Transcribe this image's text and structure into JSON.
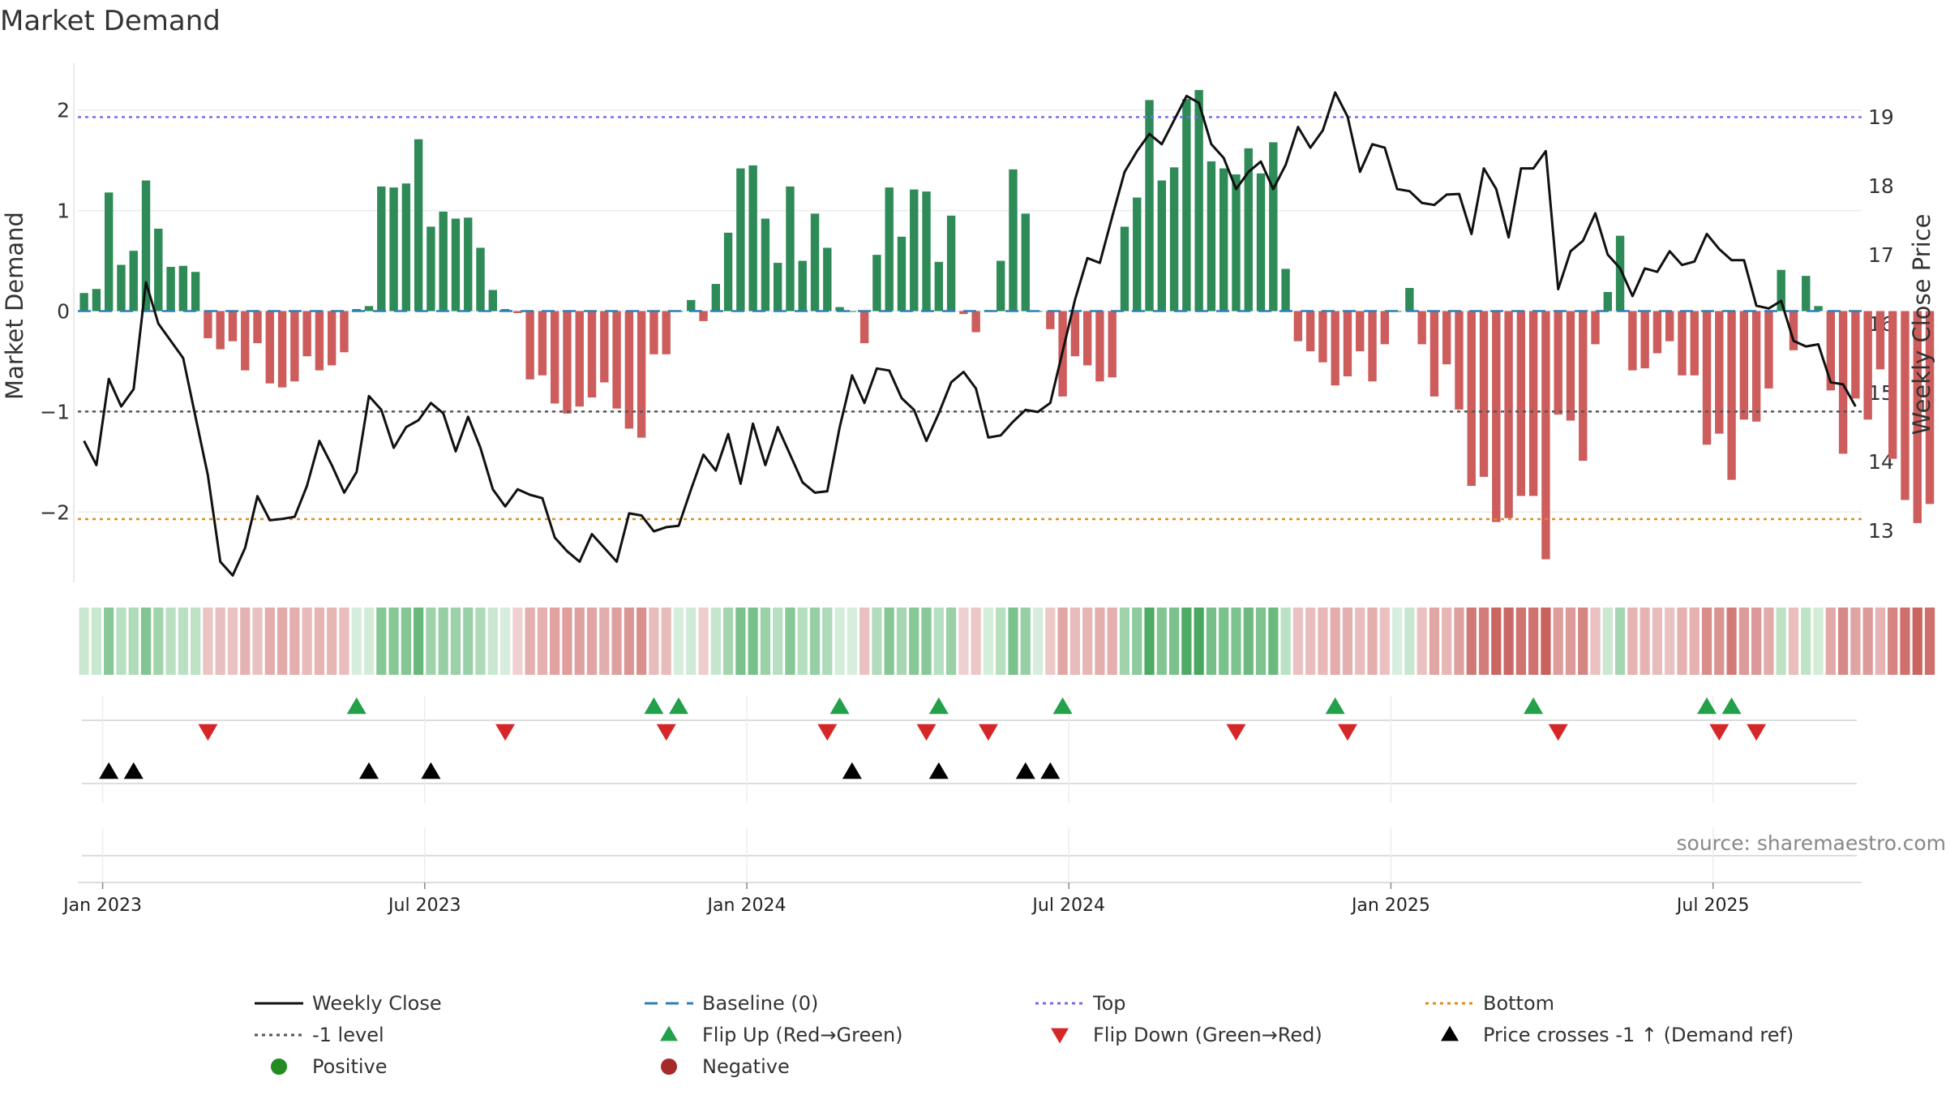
{
  "chart_data": {
    "type": "bar+line",
    "title": "Market Demand",
    "left_axis": {
      "label": "Market Demand",
      "ticks": [
        -2,
        -1,
        0,
        1,
        2
      ],
      "tick_labels": [
        "−2",
        "−1",
        "0",
        "1",
        "2"
      ],
      "ylim": [
        -2.7,
        2.45
      ]
    },
    "right_axis": {
      "label": "Weekly Close Price",
      "ticks": [
        13,
        14,
        15,
        16,
        17,
        18,
        19
      ],
      "tick_labels": [
        "13",
        "14",
        "15",
        "16",
        "17",
        "18",
        "19"
      ],
      "ylim": [
        12.25,
        19.75
      ]
    },
    "x_axis": {
      "tick_labels": [
        "Jan 2023",
        "Jul 2023",
        "Jan 2024",
        "Jul 2024",
        "Jan 2025",
        "Jul 2025"
      ],
      "tick_weeks": [
        1.5,
        27.5,
        53.5,
        79.5,
        105.5,
        131.5
      ],
      "n_weeks": 144
    },
    "reference_lines": {
      "top": 1.93,
      "minus_one": -1.0,
      "bottom": -2.07,
      "baseline": 0
    },
    "demand": [
      0.18,
      0.22,
      1.18,
      0.46,
      0.6,
      1.3,
      0.82,
      0.44,
      0.45,
      0.39,
      -0.27,
      -0.38,
      -0.3,
      -0.59,
      -0.32,
      -0.72,
      -0.76,
      -0.7,
      -0.45,
      -0.59,
      -0.54,
      -0.41,
      0.02,
      0.05,
      1.24,
      1.23,
      1.27,
      1.71,
      0.84,
      0.99,
      0.92,
      0.93,
      0.63,
      0.21,
      0.02,
      -0.02,
      -0.68,
      -0.64,
      -0.92,
      -1.02,
      -0.95,
      -0.86,
      -0.71,
      -0.97,
      -1.17,
      -1.26,
      -0.43,
      -0.43,
      0.0,
      0.11,
      -0.1,
      0.27,
      0.78,
      1.42,
      1.45,
      0.92,
      0.48,
      1.24,
      0.5,
      0.97,
      0.63,
      0.04,
      0.0,
      -0.32,
      0.56,
      1.23,
      0.74,
      1.21,
      1.19,
      0.49,
      0.95,
      -0.03,
      -0.21,
      0.01,
      0.5,
      1.41,
      0.97,
      0.0,
      -0.18,
      -0.85,
      -0.45,
      -0.54,
      -0.7,
      -0.66,
      0.84,
      1.13,
      2.1,
      1.3,
      1.43,
      2.11,
      2.2,
      1.49,
      1.42,
      1.36,
      1.62,
      1.37,
      1.68,
      0.42,
      -0.3,
      -0.4,
      -0.51,
      -0.74,
      -0.65,
      -0.4,
      -0.7,
      -0.33,
      0.0,
      0.23,
      -0.33,
      -0.85,
      -0.53,
      -0.98,
      -1.74,
      -1.65,
      -2.1,
      -2.06,
      -1.84,
      -1.84,
      -2.47,
      -1.03,
      -1.09,
      -1.49,
      -0.33,
      0.19,
      0.75,
      -0.59,
      -0.57,
      -0.42,
      -0.3,
      -0.64,
      -0.64,
      -1.33,
      -1.22,
      -1.68,
      -1.08,
      -1.1,
      -0.77,
      0.41,
      -0.39,
      0.35,
      0.05,
      -0.79,
      -1.42,
      -0.87,
      -1.08,
      -0.58,
      -1.47,
      -1.88,
      -2.11,
      -1.92
    ],
    "weekly_close": [
      14.3,
      13.95,
      15.2,
      14.8,
      15.05,
      16.6,
      16.0,
      15.75,
      15.5,
      14.65,
      13.8,
      12.55,
      12.35,
      12.75,
      13.5,
      13.15,
      13.17,
      13.2,
      13.65,
      14.3,
      13.95,
      13.55,
      13.85,
      14.95,
      14.75,
      14.2,
      14.5,
      14.6,
      14.85,
      14.7,
      14.15,
      14.65,
      14.2,
      13.6,
      13.35,
      13.6,
      13.52,
      13.47,
      12.9,
      12.7,
      12.55,
      12.95,
      12.75,
      12.55,
      13.25,
      13.22,
      12.99,
      13.05,
      13.07,
      13.6,
      14.1,
      13.87,
      14.4,
      13.68,
      14.55,
      13.95,
      14.5,
      14.1,
      13.7,
      13.55,
      13.57,
      14.5,
      15.25,
      14.85,
      15.35,
      15.32,
      14.92,
      14.75,
      14.3,
      14.7,
      15.15,
      15.3,
      15.06,
      14.35,
      14.38,
      14.58,
      14.75,
      14.72,
      14.85,
      15.6,
      16.35,
      16.95,
      16.88,
      17.55,
      18.2,
      18.5,
      18.75,
      18.6,
      18.95,
      19.3,
      19.2,
      18.6,
      18.4,
      17.95,
      18.2,
      18.35,
      17.95,
      18.3,
      18.85,
      18.55,
      18.8,
      19.35,
      19.0,
      18.2,
      18.6,
      18.55,
      17.95,
      17.92,
      17.75,
      17.72,
      17.87,
      17.88,
      17.3,
      18.25,
      17.95,
      17.25,
      18.25,
      18.25,
      18.5,
      16.5,
      17.05,
      17.2,
      17.6,
      17.0,
      16.8,
      16.4,
      16.8,
      16.75,
      17.05,
      16.85,
      16.9,
      17.3,
      17.08,
      16.92,
      16.92,
      16.26,
      16.22,
      16.33,
      15.75,
      15.67,
      15.7,
      15.15,
      15.12,
      14.8
    ],
    "flip_up_weeks": [
      22,
      46,
      48,
      61,
      69,
      79,
      101,
      117,
      131,
      133
    ],
    "flip_down_weeks": [
      10,
      34,
      47,
      60,
      68,
      73,
      93,
      102,
      119,
      132,
      135
    ],
    "price_cross_weeks": [
      2,
      4,
      23,
      28,
      62,
      69,
      76,
      78
    ],
    "legend": [
      {
        "key": "weekly_close",
        "label": "Weekly Close",
        "symbol": "solid-line",
        "color": "#111111"
      },
      {
        "key": "baseline",
        "label": "Baseline (0)",
        "symbol": "dashed-line",
        "color": "#2c7fb8"
      },
      {
        "key": "top",
        "label": "Top",
        "symbol": "dotted-line",
        "color": "#7b68ee"
      },
      {
        "key": "bottom",
        "label": "Bottom",
        "symbol": "dotted-line",
        "color": "#e08a1e"
      },
      {
        "key": "minus_one",
        "label": "-1 level",
        "symbol": "dotted-line",
        "color": "#555555"
      },
      {
        "key": "flip_up",
        "label": "Flip Up (Red→Green)",
        "symbol": "triangle-up",
        "color": "#22a04a"
      },
      {
        "key": "flip_down",
        "label": "Flip Down (Green→Red)",
        "symbol": "triangle-down",
        "color": "#d62728"
      },
      {
        "key": "price_cross",
        "label": "Price crosses -1 ↑ (Demand ref)",
        "symbol": "triangle-up",
        "color": "#000000"
      },
      {
        "key": "positive",
        "label": "Positive",
        "symbol": "circle",
        "color": "#228b22"
      },
      {
        "key": "negative",
        "label": "Negative",
        "symbol": "circle",
        "color": "#a52a2a"
      }
    ],
    "source": "source: sharemaestro.com",
    "colors": {
      "positive_bar": "#2e8b57",
      "negative_bar": "#cd5c5c",
      "flip_up": "#22a04a",
      "flip_down": "#d62728",
      "price_line": "#111111"
    }
  }
}
